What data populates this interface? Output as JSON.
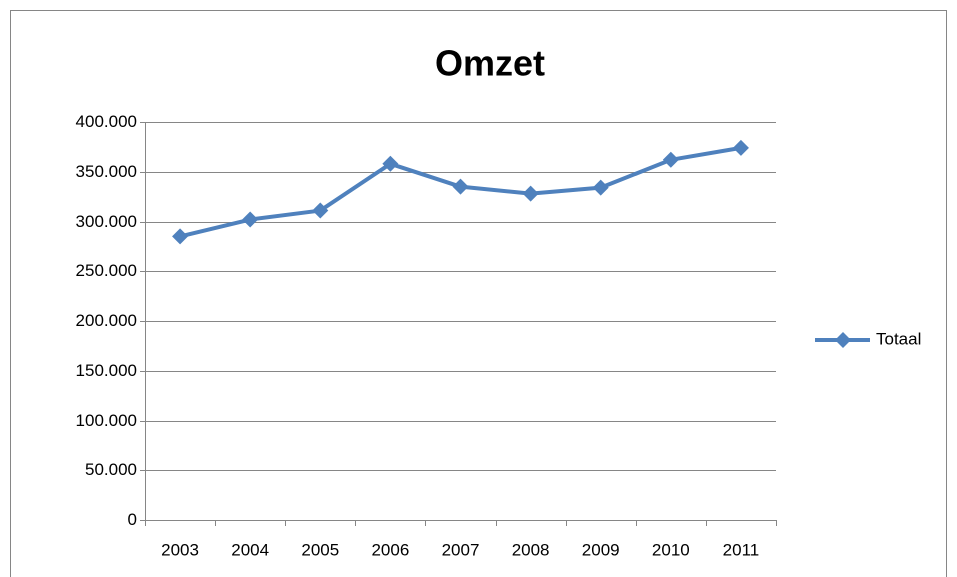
{
  "chart_data": {
    "type": "line",
    "title": "Omzet",
    "categories": [
      "2003",
      "2004",
      "2005",
      "2006",
      "2007",
      "2008",
      "2009",
      "2010",
      "2011"
    ],
    "series": [
      {
        "name": "Totaal",
        "color": "#4f81bd",
        "values": [
          285000,
          302000,
          311000,
          358000,
          335000,
          328000,
          334000,
          362000,
          374000
        ]
      }
    ],
    "ylim": [
      0,
      400000
    ],
    "yticks": [
      0,
      {
        "value": 50000,
        "label": "50.000"
      },
      {
        "value": 100000,
        "label": "100.000"
      },
      {
        "value": 150000,
        "label": "150.000"
      },
      {
        "value": 200000,
        "label": "200.000"
      },
      {
        "value": 250000,
        "label": "250.000"
      },
      {
        "value": 300000,
        "label": "300.000"
      },
      {
        "value": 350000,
        "label": "350.000"
      },
      {
        "value": 400000,
        "label": "400.000"
      }
    ],
    "grid": true,
    "legend": "right"
  }
}
